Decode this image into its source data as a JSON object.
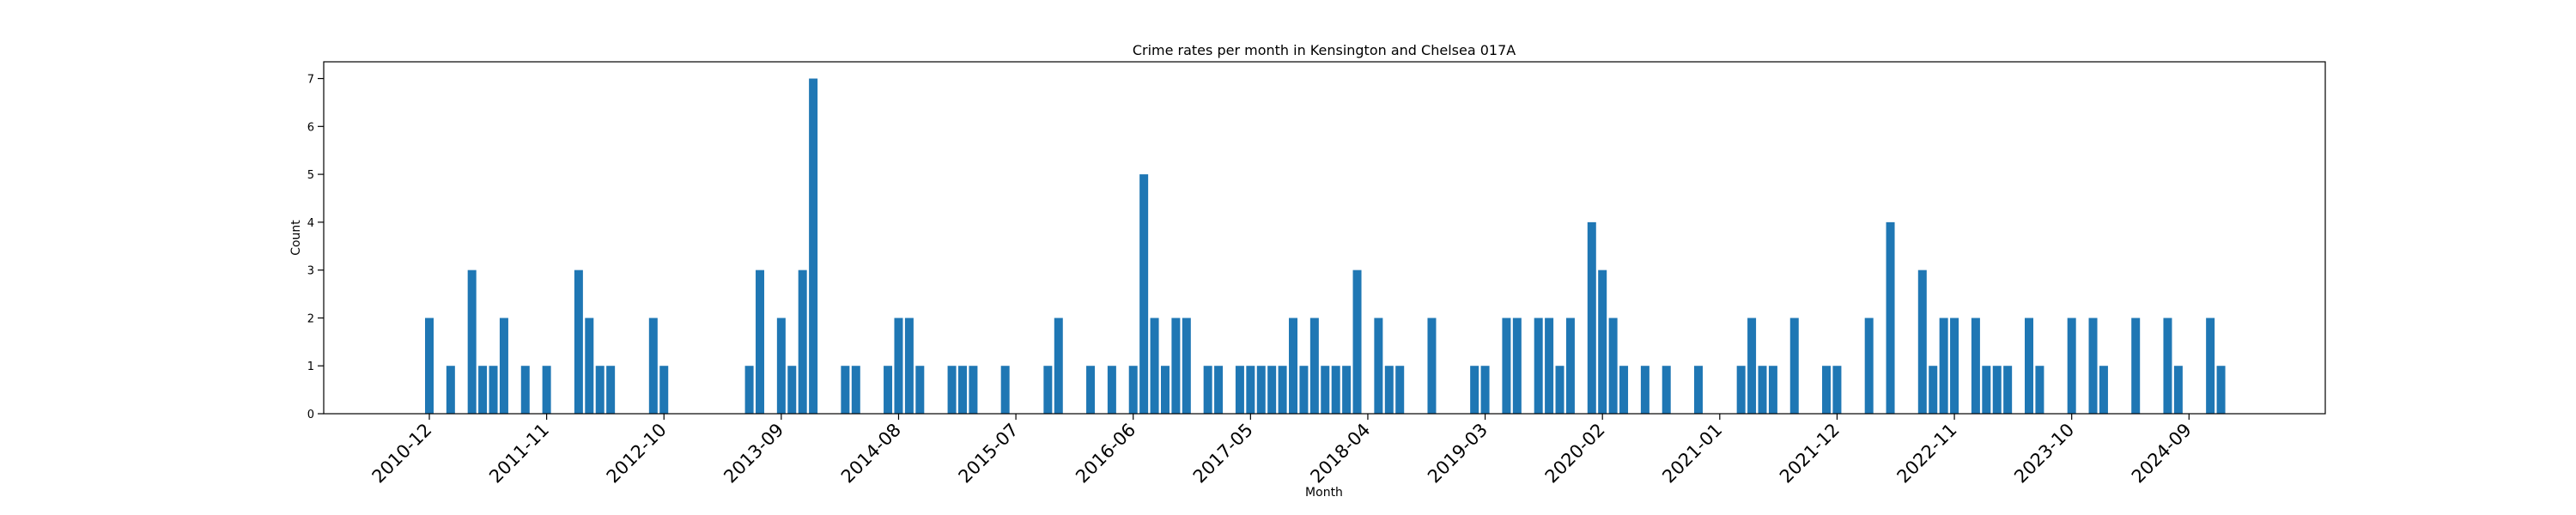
{
  "chart_data": {
    "type": "bar",
    "title": "Crime rates per month in Kensington and Chelsea 017A",
    "xlabel": "Month",
    "ylabel": "Count",
    "ylim": [
      0,
      7.35
    ],
    "yticks": [
      0,
      1,
      2,
      3,
      4,
      5,
      6,
      7
    ],
    "xticks": [
      "2010-12",
      "2011-11",
      "2012-10",
      "2013-09",
      "2014-08",
      "2015-07",
      "2016-06",
      "2017-05",
      "2018-04",
      "2019-03",
      "2020-02",
      "2021-01",
      "2021-12",
      "2022-11",
      "2023-10",
      "2024-09"
    ],
    "bar_color": "#1f77b4",
    "grid": false,
    "data": [
      [
        "2010-12",
        2
      ],
      [
        "2011-02",
        1
      ],
      [
        "2011-04",
        3
      ],
      [
        "2011-05",
        1
      ],
      [
        "2011-06",
        1
      ],
      [
        "2011-07",
        2
      ],
      [
        "2011-09",
        1
      ],
      [
        "2011-11",
        1
      ],
      [
        "2012-02",
        3
      ],
      [
        "2012-03",
        2
      ],
      [
        "2012-04",
        1
      ],
      [
        "2012-05",
        1
      ],
      [
        "2012-09",
        2
      ],
      [
        "2012-10",
        1
      ],
      [
        "2013-06",
        1
      ],
      [
        "2013-07",
        3
      ],
      [
        "2013-09",
        2
      ],
      [
        "2013-10",
        1
      ],
      [
        "2013-11",
        3
      ],
      [
        "2013-12",
        7
      ],
      [
        "2014-03",
        1
      ],
      [
        "2014-04",
        1
      ],
      [
        "2014-07",
        1
      ],
      [
        "2014-08",
        2
      ],
      [
        "2014-09",
        2
      ],
      [
        "2014-10",
        1
      ],
      [
        "2015-01",
        1
      ],
      [
        "2015-02",
        1
      ],
      [
        "2015-03",
        1
      ],
      [
        "2015-06",
        1
      ],
      [
        "2015-10",
        1
      ],
      [
        "2015-11",
        2
      ],
      [
        "2016-02",
        1
      ],
      [
        "2016-04",
        1
      ],
      [
        "2016-06",
        1
      ],
      [
        "2016-07",
        5
      ],
      [
        "2016-08",
        2
      ],
      [
        "2016-09",
        1
      ],
      [
        "2016-10",
        2
      ],
      [
        "2016-11",
        2
      ],
      [
        "2017-01",
        1
      ],
      [
        "2017-02",
        1
      ],
      [
        "2017-04",
        1
      ],
      [
        "2017-05",
        1
      ],
      [
        "2017-06",
        1
      ],
      [
        "2017-07",
        1
      ],
      [
        "2017-08",
        1
      ],
      [
        "2017-09",
        2
      ],
      [
        "2017-10",
        1
      ],
      [
        "2017-11",
        2
      ],
      [
        "2017-12",
        1
      ],
      [
        "2018-01",
        1
      ],
      [
        "2018-02",
        1
      ],
      [
        "2018-03",
        3
      ],
      [
        "2018-05",
        2
      ],
      [
        "2018-06",
        1
      ],
      [
        "2018-07",
        1
      ],
      [
        "2018-10",
        2
      ],
      [
        "2019-02",
        1
      ],
      [
        "2019-03",
        1
      ],
      [
        "2019-05",
        2
      ],
      [
        "2019-06",
        2
      ],
      [
        "2019-08",
        2
      ],
      [
        "2019-09",
        2
      ],
      [
        "2019-10",
        1
      ],
      [
        "2019-11",
        2
      ],
      [
        "2020-01",
        4
      ],
      [
        "2020-02",
        3
      ],
      [
        "2020-03",
        2
      ],
      [
        "2020-04",
        1
      ],
      [
        "2020-06",
        1
      ],
      [
        "2020-08",
        1
      ],
      [
        "2020-11",
        1
      ],
      [
        "2021-03",
        1
      ],
      [
        "2021-04",
        2
      ],
      [
        "2021-05",
        1
      ],
      [
        "2021-06",
        1
      ],
      [
        "2021-08",
        2
      ],
      [
        "2021-11",
        1
      ],
      [
        "2021-12",
        1
      ],
      [
        "2022-03",
        2
      ],
      [
        "2022-05",
        4
      ],
      [
        "2022-08",
        3
      ],
      [
        "2022-09",
        1
      ],
      [
        "2022-10",
        2
      ],
      [
        "2022-11",
        2
      ],
      [
        "2023-01",
        2
      ],
      [
        "2023-02",
        1
      ],
      [
        "2023-03",
        1
      ],
      [
        "2023-04",
        1
      ],
      [
        "2023-06",
        2
      ],
      [
        "2023-07",
        1
      ],
      [
        "2023-10",
        2
      ],
      [
        "2023-12",
        2
      ],
      [
        "2024-01",
        1
      ],
      [
        "2024-04",
        2
      ],
      [
        "2024-07",
        2
      ],
      [
        "2024-08",
        1
      ],
      [
        "2024-11",
        2
      ],
      [
        "2024-12",
        1
      ]
    ]
  }
}
